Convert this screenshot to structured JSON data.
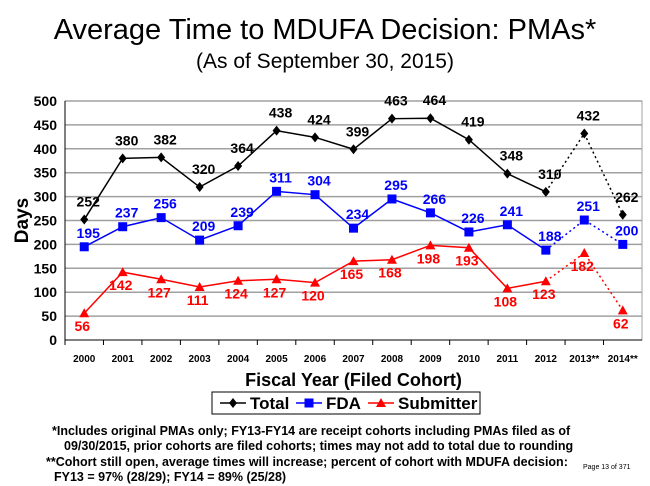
{
  "chart_data": {
    "type": "line",
    "title": "Average Time to MDUFA Decision:  PMAs*",
    "subtitle": "(As of September 30, 2015)",
    "xlabel": "Fiscal Year (Filed Cohort)",
    "ylabel": "Days",
    "ylim": [
      0,
      500
    ],
    "yticks": [
      0,
      50,
      100,
      150,
      200,
      250,
      300,
      350,
      400,
      450,
      500
    ],
    "grid": true,
    "legend_placement": "bottom",
    "categories": [
      "2000",
      "2001",
      "2002",
      "2003",
      "2004",
      "2005",
      "2006",
      "2007",
      "2008",
      "2009",
      "2010",
      "2011",
      "2012",
      "2013**",
      "2014**"
    ],
    "dashed_from_category": "2012",
    "series": [
      {
        "name": "Total",
        "color": "#000000",
        "marker": "diamond",
        "values": [
          252,
          380,
          382,
          320,
          364,
          438,
          424,
          399,
          463,
          464,
          419,
          348,
          310,
          432,
          262
        ]
      },
      {
        "name": "FDA",
        "color": "#0000ff",
        "marker": "square",
        "values": [
          195,
          237,
          256,
          209,
          239,
          311,
          304,
          234,
          295,
          266,
          226,
          241,
          188,
          251,
          200
        ]
      },
      {
        "name": "Submitter",
        "color": "#ff0000",
        "marker": "triangle",
        "values": [
          56,
          142,
          127,
          111,
          124,
          127,
          120,
          165,
          168,
          198,
          193,
          108,
          123,
          182,
          62
        ]
      }
    ]
  },
  "footnotes": {
    "line1": "*Includes original PMAs only; FY13-FY14 are receipt cohorts including PMAs filed as of",
    "line2": "09/30/2015, prior cohorts are filed cohorts; times may not add to total due to rounding",
    "line3": "**Cohort still open, average times will increase; percent of cohort with MDUFA decision:",
    "line4": "FY13 = 97% (28/29); FY14 = 89% (25/28)"
  },
  "page_label": "Page 13 of 371"
}
